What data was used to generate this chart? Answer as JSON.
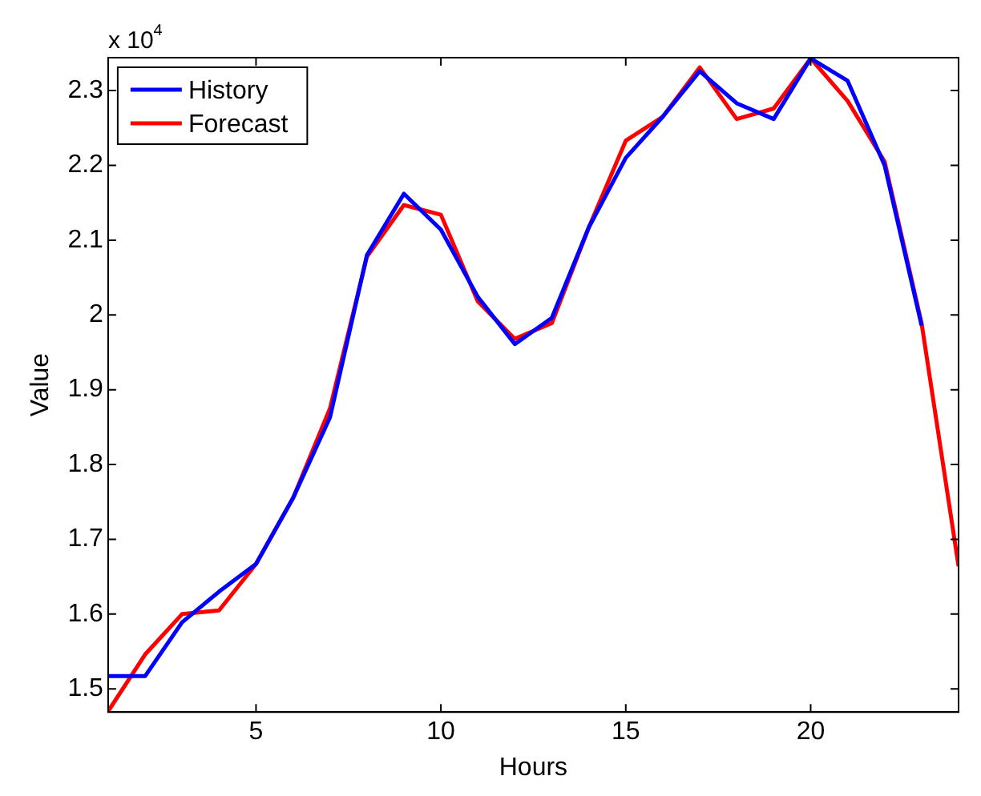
{
  "chart_data": {
    "type": "line",
    "xlabel": "Hours",
    "ylabel": "Value",
    "annotations": [
      "x 10$^{4}$"
    ],
    "x": [
      1,
      2,
      3,
      4,
      5,
      6,
      7,
      8,
      9,
      10,
      11,
      12,
      13,
      14,
      15,
      16,
      17,
      18,
      19,
      20,
      21,
      22,
      23,
      24
    ],
    "series": [
      {
        "name": "History",
        "color": "#0000ff",
        "values": [
          1.517,
          1.517,
          1.589,
          1.63,
          1.667,
          1.755,
          1.863,
          2.08,
          2.162,
          2.114,
          2.024,
          1.961,
          1.996,
          2.117,
          2.21,
          2.265,
          2.326,
          2.283,
          2.262,
          2.343,
          2.313,
          2.2,
          1.986,
          null
        ]
      },
      {
        "name": "Forecast",
        "color": "#ff0000",
        "values": [
          1.47,
          1.546,
          1.6,
          1.605,
          1.667,
          1.755,
          1.875,
          2.078,
          2.147,
          2.134,
          2.018,
          1.968,
          1.989,
          2.117,
          2.233,
          2.265,
          2.331,
          2.262,
          2.276,
          2.343,
          2.286,
          2.205,
          1.989,
          1.664
        ]
      }
    ],
    "xlim": [
      1,
      24
    ],
    "xticks": [
      5,
      10,
      15,
      20
    ],
    "ylim": [
      1.469,
      2.344
    ],
    "yticks": [
      1.5,
      1.6,
      1.7,
      1.8,
      1.9,
      2,
      2.1,
      2.2,
      2.3
    ],
    "grid": false,
    "legend": "top left",
    "marker": "none",
    "line_style": "solid"
  }
}
